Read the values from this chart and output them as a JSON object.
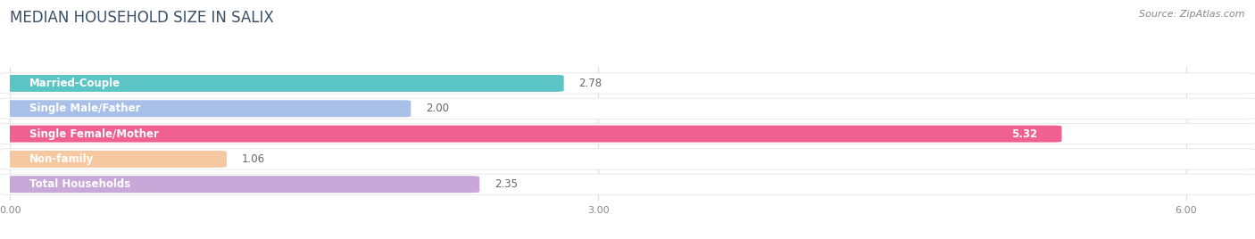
{
  "title": "MEDIAN HOUSEHOLD SIZE IN SALIX",
  "source": "Source: ZipAtlas.com",
  "categories": [
    "Married-Couple",
    "Single Male/Father",
    "Single Female/Mother",
    "Non-family",
    "Total Households"
  ],
  "values": [
    2.78,
    2.0,
    5.32,
    1.06,
    2.35
  ],
  "bar_colors": [
    "#5bc4c4",
    "#a8c0e8",
    "#f06090",
    "#f5c8a0",
    "#c8a8d8"
  ],
  "bar_bg_colors": [
    "#f0fafa",
    "#f0f4fc",
    "#fdf0f5",
    "#fef8f0",
    "#f5f0fc"
  ],
  "value_on_bar": [
    false,
    false,
    true,
    false,
    false
  ],
  "xlim": [
    0,
    6.3
  ],
  "xticks": [
    0.0,
    3.0,
    6.0
  ],
  "xtick_labels": [
    "0.00",
    "3.00",
    "6.00"
  ],
  "title_fontsize": 12,
  "label_fontsize": 8.5,
  "value_fontsize": 8.5,
  "source_fontsize": 8,
  "background_color": "#ffffff",
  "row_bg_color": "#f5f5f5"
}
